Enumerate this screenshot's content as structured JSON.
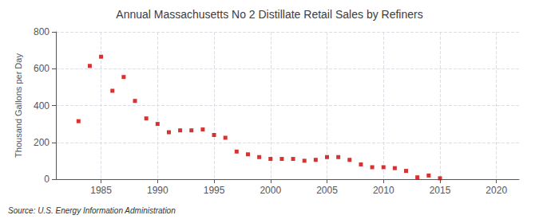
{
  "chart_data": {
    "type": "scatter",
    "title": "Annual Massachusetts No 2 Distillate Retail Sales by Refiners",
    "ylabel": "Thousand Gallons per Day",
    "annotation": "Source: U.S. Energy Information Administration",
    "x": [
      1983,
      1984,
      1985,
      1986,
      1987,
      1988,
      1989,
      1990,
      1991,
      1992,
      1993,
      1994,
      1995,
      1996,
      1997,
      1998,
      1999,
      2000,
      2001,
      2002,
      2003,
      2004,
      2005,
      2006,
      2007,
      2008,
      2009,
      2010,
      2011,
      2012,
      2013,
      2014,
      2015
    ],
    "values": [
      315,
      615,
      665,
      480,
      555,
      425,
      330,
      300,
      255,
      265,
      265,
      270,
      240,
      225,
      150,
      135,
      120,
      110,
      110,
      110,
      100,
      105,
      120,
      120,
      105,
      80,
      65,
      65,
      60,
      45,
      10,
      20,
      5
    ],
    "color": "#cc0000",
    "marker": "square",
    "xlim": [
      1981,
      2022
    ],
    "ylim": [
      0,
      800
    ],
    "xticks": [
      1985,
      1990,
      1995,
      2000,
      2005,
      2010,
      2015,
      2020
    ],
    "yticks": [
      0,
      200,
      400,
      600,
      800
    ],
    "grid": true
  }
}
